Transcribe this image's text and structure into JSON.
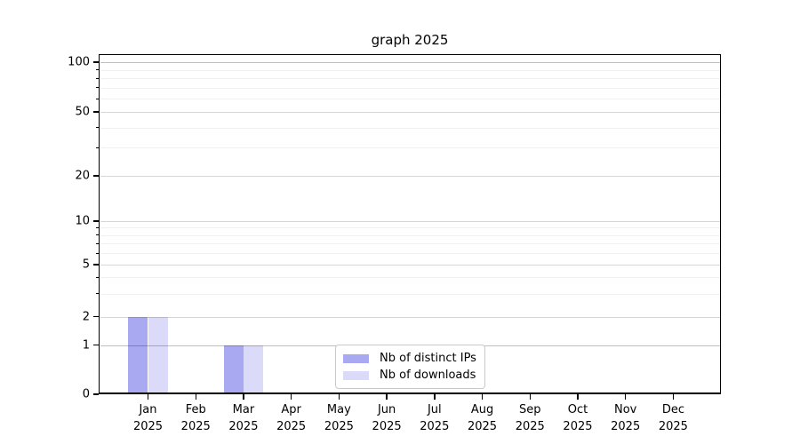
{
  "chart_data": {
    "type": "bar",
    "title": "graph 2025",
    "year_label": "2025",
    "months": [
      "Jan",
      "Feb",
      "Mar",
      "Apr",
      "May",
      "Jun",
      "Jul",
      "Aug",
      "Sep",
      "Oct",
      "Nov",
      "Dec"
    ],
    "series": [
      {
        "name": "Nb of distinct IPs",
        "color": "#a9a9f2",
        "values": [
          2,
          0,
          1,
          0,
          0,
          0,
          0,
          0,
          0,
          0,
          0,
          0
        ]
      },
      {
        "name": "Nb of downloads",
        "color": "#dbdaf9",
        "values": [
          2,
          0,
          1,
          0,
          0,
          0,
          0,
          0,
          0,
          0,
          0,
          0
        ]
      }
    ],
    "yticks": [
      0,
      1,
      2,
      5,
      10,
      20,
      50,
      100
    ],
    "yscale": "log",
    "ylim": [
      0,
      110
    ],
    "grid": true,
    "legend_position": "lower center"
  },
  "colors": {
    "background": "#ffffff",
    "axis": "#000000",
    "grid_major": "#d9d9d9",
    "grid_minor": "#f0f0f0",
    "text": "#000000"
  }
}
